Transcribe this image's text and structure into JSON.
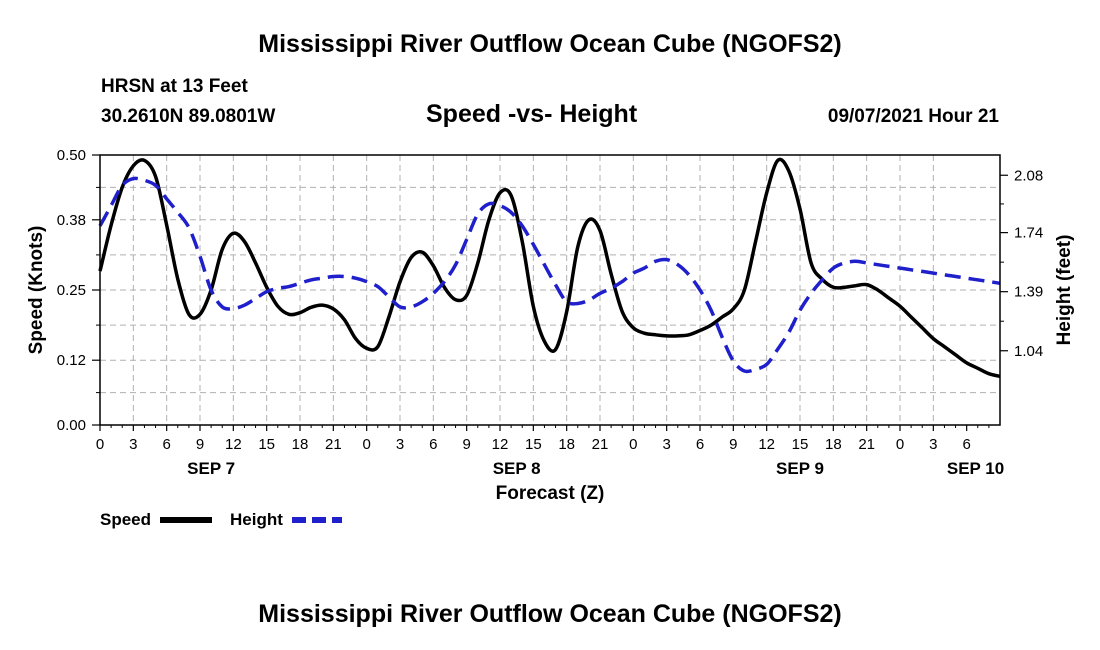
{
  "header": {
    "title_top": "Mississippi River Outflow Ocean Cube (NGOFS2)",
    "station": "HRSN at 13 Feet",
    "coords": "30.2610N  89.0801W",
    "subtitle": "Speed -vs- Height",
    "datetime": "09/07/2021 Hour 21",
    "title_bottom": "Mississippi River Outflow Ocean Cube (NGOFS2)"
  },
  "legend": {
    "speed_label": "Speed",
    "height_label": "Height"
  },
  "colors": {
    "speed": "#000000",
    "height": "#1f1fcc",
    "grid": "#b0b0b0"
  },
  "chart_data": {
    "type": "line",
    "title": "Speed -vs- Height",
    "xlabel": "Forecast (Z)",
    "ylabel_left": "Speed (Knots)",
    "ylabel_right": "Height (feet)",
    "x_range_hours": [
      0,
      81
    ],
    "x_tick_labels": [
      "0",
      "3",
      "6",
      "9",
      "12",
      "15",
      "18",
      "21",
      "0",
      "3",
      "6",
      "9",
      "12",
      "15",
      "18",
      "21",
      "0",
      "3",
      "6",
      "9",
      "12",
      "15",
      "18",
      "21",
      "0",
      "3",
      "6"
    ],
    "day_labels": [
      {
        "label": "SEP 7",
        "hour": 10
      },
      {
        "label": "SEP 8",
        "hour": 37.5
      },
      {
        "label": "SEP 9",
        "hour": 63
      },
      {
        "label": "SEP 10",
        "hour": 78.8
      }
    ],
    "y_left": {
      "min": 0,
      "max": 0.5,
      "ticks": [
        "0.00",
        "0.12",
        "0.25",
        "0.38",
        "0.50"
      ]
    },
    "y_right": {
      "min": 0.6,
      "max": 2.2,
      "ticks": [
        "1.04",
        "1.39",
        "1.74",
        "2.08"
      ]
    },
    "grid": true,
    "legend_position": "bottom-left",
    "series": [
      {
        "name": "Speed",
        "axis": "left",
        "style": "solid",
        "x": [
          0,
          1,
          2,
          3,
          4,
          5,
          6,
          7,
          8,
          9,
          10,
          11,
          12,
          13,
          14,
          15,
          16,
          17,
          18,
          19,
          20,
          21,
          22,
          23,
          24,
          25,
          26,
          27,
          28,
          29,
          30,
          31,
          32,
          33,
          34,
          35,
          36,
          37,
          38,
          39,
          40,
          41,
          42,
          43,
          44,
          45,
          46,
          47,
          48,
          49,
          50,
          51,
          52,
          53,
          54,
          55,
          56,
          57,
          58,
          59,
          60,
          61,
          62,
          63,
          64,
          65,
          66,
          67,
          68,
          69,
          70,
          71,
          72,
          73,
          74,
          75,
          76,
          77,
          78,
          79,
          80,
          81
        ],
        "values": [
          0.285,
          0.37,
          0.44,
          0.48,
          0.49,
          0.46,
          0.37,
          0.27,
          0.205,
          0.205,
          0.25,
          0.325,
          0.355,
          0.34,
          0.3,
          0.255,
          0.22,
          0.205,
          0.208,
          0.218,
          0.222,
          0.215,
          0.195,
          0.16,
          0.142,
          0.145,
          0.2,
          0.265,
          0.31,
          0.32,
          0.295,
          0.255,
          0.232,
          0.24,
          0.3,
          0.38,
          0.43,
          0.425,
          0.34,
          0.22,
          0.155,
          0.14,
          0.21,
          0.33,
          0.38,
          0.36,
          0.28,
          0.21,
          0.18,
          0.17,
          0.167,
          0.165,
          0.165,
          0.167,
          0.175,
          0.185,
          0.2,
          0.215,
          0.25,
          0.34,
          0.43,
          0.49,
          0.47,
          0.4,
          0.3,
          0.27,
          0.255,
          0.255,
          0.258,
          0.26,
          0.25,
          0.235,
          0.22,
          0.2,
          0.18,
          0.16,
          0.145,
          0.13,
          0.115,
          0.105,
          0.095,
          0.09
        ]
      },
      {
        "name": "Height",
        "axis": "right",
        "style": "dashed",
        "x": [
          0,
          1,
          2,
          3,
          4,
          5,
          6,
          7,
          8,
          9,
          10,
          11,
          12,
          13,
          14,
          15,
          16,
          17,
          18,
          19,
          20,
          21,
          22,
          23,
          24,
          25,
          26,
          27,
          28,
          29,
          30,
          31,
          32,
          33,
          34,
          35,
          36,
          37,
          38,
          39,
          40,
          41,
          42,
          43,
          44,
          45,
          46,
          47,
          48,
          49,
          50,
          51,
          52,
          53,
          54,
          55,
          56,
          57,
          58,
          59,
          60,
          61,
          62,
          63,
          64,
          65,
          66,
          67,
          68,
          69,
          70,
          71,
          72,
          73,
          74,
          75,
          76,
          77,
          78,
          79,
          80,
          81
        ],
        "values": [
          1.78,
          1.9,
          2.02,
          2.06,
          2.05,
          2.02,
          1.94,
          1.86,
          1.77,
          1.6,
          1.4,
          1.3,
          1.29,
          1.31,
          1.35,
          1.39,
          1.41,
          1.42,
          1.44,
          1.46,
          1.47,
          1.48,
          1.48,
          1.47,
          1.45,
          1.42,
          1.36,
          1.3,
          1.3,
          1.33,
          1.38,
          1.45,
          1.55,
          1.7,
          1.85,
          1.91,
          1.9,
          1.86,
          1.78,
          1.67,
          1.55,
          1.43,
          1.33,
          1.32,
          1.34,
          1.38,
          1.41,
          1.45,
          1.5,
          1.53,
          1.57,
          1.58,
          1.55,
          1.49,
          1.4,
          1.28,
          1.12,
          0.98,
          0.92,
          0.93,
          0.96,
          1.05,
          1.15,
          1.28,
          1.38,
          1.46,
          1.53,
          1.56,
          1.57,
          1.56,
          1.55,
          1.54,
          1.53,
          1.52,
          1.51,
          1.5,
          1.49,
          1.48,
          1.47,
          1.46,
          1.45,
          1.44
        ]
      }
    ]
  }
}
